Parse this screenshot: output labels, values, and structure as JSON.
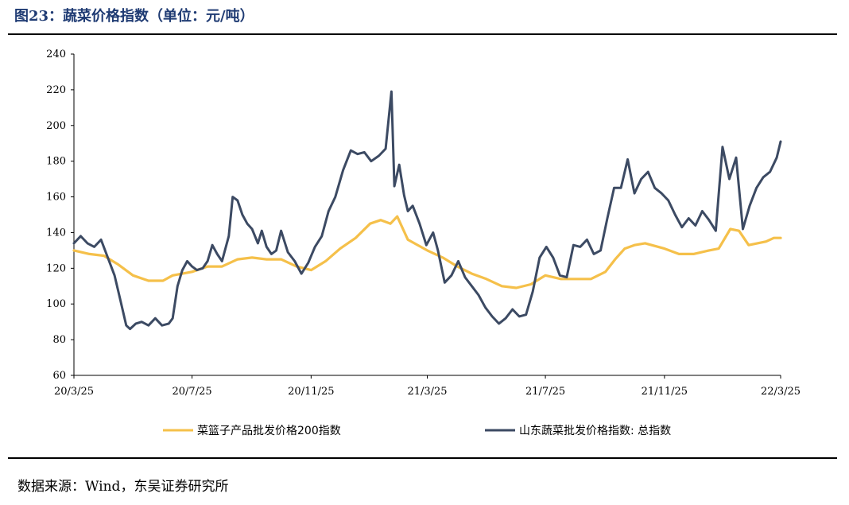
{
  "header": {
    "title": "图23：蔬菜价格指数（单位：元/吨）"
  },
  "footer": {
    "source": "数据来源：Wind，东吴证券研究所"
  },
  "colors": {
    "title": "#1f3b73",
    "series_basket": "#f5c04a",
    "series_shandong": "#3c4a63"
  },
  "chart_data": {
    "type": "line",
    "title": "",
    "xlabel": "",
    "ylabel": "",
    "ylim": [
      60,
      240
    ],
    "yticks": [
      60,
      80,
      100,
      120,
      140,
      160,
      180,
      200,
      220,
      240
    ],
    "xlim": [
      "2020-03-25",
      "2022-03-25"
    ],
    "xticks": [
      "2020-03-25",
      "2020-07-25",
      "2020-11-25",
      "2021-03-25",
      "2021-07-25",
      "2021-11-25",
      "2022-03-25"
    ],
    "xtick_labels": [
      "20/3/25",
      "20/7/25",
      "20/11/25",
      "21/3/25",
      "21/7/25",
      "21/11/25",
      "22/3/25"
    ],
    "grid": false,
    "legend_position": "bottom",
    "series": [
      {
        "name": "菜篮子产品批发价格200指数",
        "color": "#f5c04a",
        "points": [
          [
            "2020-03-25",
            130
          ],
          [
            "2020-04-10",
            128
          ],
          [
            "2020-04-25",
            127
          ],
          [
            "2020-05-10",
            122
          ],
          [
            "2020-05-25",
            116
          ],
          [
            "2020-06-10",
            113
          ],
          [
            "2020-06-25",
            113
          ],
          [
            "2020-07-05",
            116
          ],
          [
            "2020-07-25",
            118
          ],
          [
            "2020-08-10",
            121
          ],
          [
            "2020-08-25",
            121
          ],
          [
            "2020-09-10",
            125
          ],
          [
            "2020-09-25",
            126
          ],
          [
            "2020-10-10",
            125
          ],
          [
            "2020-10-25",
            125
          ],
          [
            "2020-11-10",
            121
          ],
          [
            "2020-11-25",
            119
          ],
          [
            "2020-12-10",
            124
          ],
          [
            "2020-12-25",
            131
          ],
          [
            "2021-01-10",
            137
          ],
          [
            "2021-01-25",
            145
          ],
          [
            "2021-02-05",
            147
          ],
          [
            "2021-02-15",
            145
          ],
          [
            "2021-02-22",
            149
          ],
          [
            "2021-03-05",
            136
          ],
          [
            "2021-03-25",
            130
          ],
          [
            "2021-04-10",
            126
          ],
          [
            "2021-04-25",
            121
          ],
          [
            "2021-05-10",
            117
          ],
          [
            "2021-05-25",
            114
          ],
          [
            "2021-06-10",
            110
          ],
          [
            "2021-06-25",
            109
          ],
          [
            "2021-07-10",
            111
          ],
          [
            "2021-07-25",
            116
          ],
          [
            "2021-08-10",
            114
          ],
          [
            "2021-08-25",
            114
          ],
          [
            "2021-09-10",
            114
          ],
          [
            "2021-09-25",
            118
          ],
          [
            "2021-10-05",
            125
          ],
          [
            "2021-10-15",
            131
          ],
          [
            "2021-10-25",
            133
          ],
          [
            "2021-11-05",
            134
          ],
          [
            "2021-11-25",
            131
          ],
          [
            "2021-12-10",
            128
          ],
          [
            "2021-12-25",
            128
          ],
          [
            "2022-01-10",
            130
          ],
          [
            "2022-01-20",
            131
          ],
          [
            "2022-02-01",
            142
          ],
          [
            "2022-02-10",
            141
          ],
          [
            "2022-02-20",
            133
          ],
          [
            "2022-03-01",
            134
          ],
          [
            "2022-03-10",
            135
          ],
          [
            "2022-03-18",
            137
          ],
          [
            "2022-03-25",
            137
          ]
        ]
      },
      {
        "name": "山东蔬菜批发价格指数: 总指数",
        "color": "#3c4a63",
        "points": [
          [
            "2020-03-25",
            134
          ],
          [
            "2020-04-01",
            138
          ],
          [
            "2020-04-08",
            134
          ],
          [
            "2020-04-15",
            132
          ],
          [
            "2020-04-22",
            136
          ],
          [
            "2020-04-29",
            126
          ],
          [
            "2020-05-06",
            116
          ],
          [
            "2020-05-12",
            102
          ],
          [
            "2020-05-18",
            88
          ],
          [
            "2020-05-22",
            86
          ],
          [
            "2020-05-28",
            89
          ],
          [
            "2020-06-03",
            90
          ],
          [
            "2020-06-10",
            88
          ],
          [
            "2020-06-17",
            92
          ],
          [
            "2020-06-24",
            88
          ],
          [
            "2020-07-01",
            89
          ],
          [
            "2020-07-05",
            92
          ],
          [
            "2020-07-10",
            110
          ],
          [
            "2020-07-15",
            119
          ],
          [
            "2020-07-20",
            124
          ],
          [
            "2020-07-25",
            121
          ],
          [
            "2020-07-30",
            119
          ],
          [
            "2020-08-05",
            120
          ],
          [
            "2020-08-10",
            124
          ],
          [
            "2020-08-15",
            133
          ],
          [
            "2020-08-20",
            128
          ],
          [
            "2020-08-25",
            124
          ],
          [
            "2020-09-01",
            138
          ],
          [
            "2020-09-05",
            160
          ],
          [
            "2020-09-10",
            158
          ],
          [
            "2020-09-15",
            150
          ],
          [
            "2020-09-20",
            145
          ],
          [
            "2020-09-25",
            142
          ],
          [
            "2020-10-01",
            134
          ],
          [
            "2020-10-05",
            141
          ],
          [
            "2020-10-10",
            132
          ],
          [
            "2020-10-15",
            128
          ],
          [
            "2020-10-20",
            130
          ],
          [
            "2020-10-25",
            141
          ],
          [
            "2020-11-01",
            129
          ],
          [
            "2020-11-08",
            124
          ],
          [
            "2020-11-15",
            117
          ],
          [
            "2020-11-22",
            123
          ],
          [
            "2020-11-29",
            132
          ],
          [
            "2020-12-06",
            138
          ],
          [
            "2020-12-13",
            152
          ],
          [
            "2020-12-20",
            160
          ],
          [
            "2020-12-28",
            175
          ],
          [
            "2021-01-05",
            186
          ],
          [
            "2021-01-12",
            184
          ],
          [
            "2021-01-19",
            185
          ],
          [
            "2021-01-26",
            180
          ],
          [
            "2021-02-03",
            183
          ],
          [
            "2021-02-10",
            187
          ],
          [
            "2021-02-16",
            219
          ],
          [
            "2021-02-19",
            166
          ],
          [
            "2021-02-24",
            178
          ],
          [
            "2021-03-01",
            161
          ],
          [
            "2021-03-05",
            152
          ],
          [
            "2021-03-10",
            155
          ],
          [
            "2021-03-17",
            145
          ],
          [
            "2021-03-24",
            133
          ],
          [
            "2021-03-31",
            140
          ],
          [
            "2021-04-05",
            130
          ],
          [
            "2021-04-12",
            112
          ],
          [
            "2021-04-19",
            116
          ],
          [
            "2021-04-26",
            124
          ],
          [
            "2021-05-03",
            115
          ],
          [
            "2021-05-10",
            110
          ],
          [
            "2021-05-17",
            105
          ],
          [
            "2021-05-24",
            98
          ],
          [
            "2021-05-31",
            93
          ],
          [
            "2021-06-07",
            89
          ],
          [
            "2021-06-14",
            92
          ],
          [
            "2021-06-21",
            97
          ],
          [
            "2021-06-28",
            93
          ],
          [
            "2021-07-05",
            94
          ],
          [
            "2021-07-12",
            107
          ],
          [
            "2021-07-19",
            126
          ],
          [
            "2021-07-26",
            132
          ],
          [
            "2021-08-02",
            126
          ],
          [
            "2021-08-09",
            116
          ],
          [
            "2021-08-16",
            115
          ],
          [
            "2021-08-23",
            133
          ],
          [
            "2021-08-30",
            132
          ],
          [
            "2021-09-06",
            136
          ],
          [
            "2021-09-13",
            128
          ],
          [
            "2021-09-20",
            130
          ],
          [
            "2021-09-27",
            148
          ],
          [
            "2021-10-04",
            165
          ],
          [
            "2021-10-11",
            165
          ],
          [
            "2021-10-18",
            181
          ],
          [
            "2021-10-25",
            162
          ],
          [
            "2021-11-01",
            170
          ],
          [
            "2021-11-08",
            174
          ],
          [
            "2021-11-15",
            165
          ],
          [
            "2021-11-22",
            162
          ],
          [
            "2021-11-29",
            158
          ],
          [
            "2021-12-06",
            150
          ],
          [
            "2021-12-13",
            143
          ],
          [
            "2021-12-20",
            148
          ],
          [
            "2021-12-27",
            144
          ],
          [
            "2022-01-03",
            152
          ],
          [
            "2022-01-10",
            147
          ],
          [
            "2022-01-17",
            141
          ],
          [
            "2022-01-24",
            188
          ],
          [
            "2022-01-31",
            170
          ],
          [
            "2022-02-07",
            182
          ],
          [
            "2022-02-14",
            142
          ],
          [
            "2022-02-21",
            155
          ],
          [
            "2022-02-28",
            165
          ],
          [
            "2022-03-07",
            171
          ],
          [
            "2022-03-14",
            174
          ],
          [
            "2022-03-21",
            182
          ],
          [
            "2022-03-25",
            191
          ]
        ]
      }
    ]
  }
}
